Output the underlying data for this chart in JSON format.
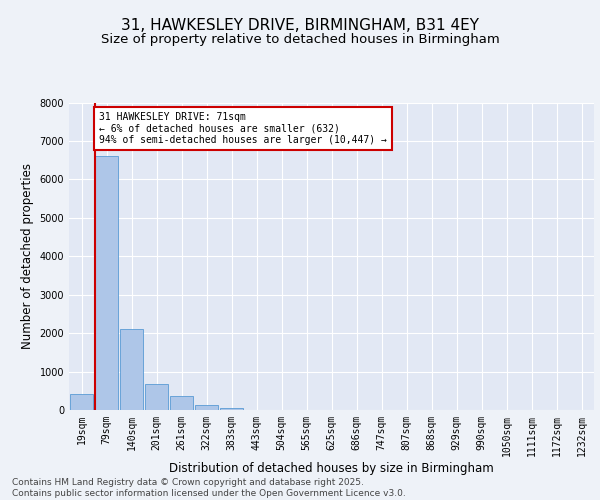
{
  "title_line1": "31, HAWKESLEY DRIVE, BIRMINGHAM, B31 4EY",
  "title_line2": "Size of property relative to detached houses in Birmingham",
  "xlabel": "Distribution of detached houses by size in Birmingham",
  "ylabel": "Number of detached properties",
  "categories": [
    "19sqm",
    "79sqm",
    "140sqm",
    "201sqm",
    "261sqm",
    "322sqm",
    "383sqm",
    "443sqm",
    "504sqm",
    "565sqm",
    "625sqm",
    "686sqm",
    "747sqm",
    "807sqm",
    "868sqm",
    "929sqm",
    "990sqm",
    "1050sqm",
    "1111sqm",
    "1172sqm",
    "1232sqm"
  ],
  "values": [
    420,
    6600,
    2100,
    680,
    370,
    130,
    60,
    10,
    5,
    1,
    0,
    0,
    0,
    0,
    0,
    0,
    0,
    0,
    0,
    0,
    0
  ],
  "bar_color": "#aec6e8",
  "bar_edge_color": "#5a9bd5",
  "vline_color": "#cc0000",
  "annotation_text": "31 HAWKESLEY DRIVE: 71sqm\n← 6% of detached houses are smaller (632)\n94% of semi-detached houses are larger (10,447) →",
  "annotation_box_color": "#ffffff",
  "annotation_box_edge": "#cc0000",
  "ylim": [
    0,
    8000
  ],
  "yticks": [
    0,
    1000,
    2000,
    3000,
    4000,
    5000,
    6000,
    7000,
    8000
  ],
  "footnote": "Contains HM Land Registry data © Crown copyright and database right 2025.\nContains public sector information licensed under the Open Government Licence v3.0.",
  "bg_color": "#eef2f8",
  "plot_bg_color": "#e2e8f4",
  "grid_color": "#ffffff",
  "title_fontsize": 11,
  "subtitle_fontsize": 9.5,
  "axis_label_fontsize": 8.5,
  "tick_fontsize": 7,
  "footnote_fontsize": 6.5
}
